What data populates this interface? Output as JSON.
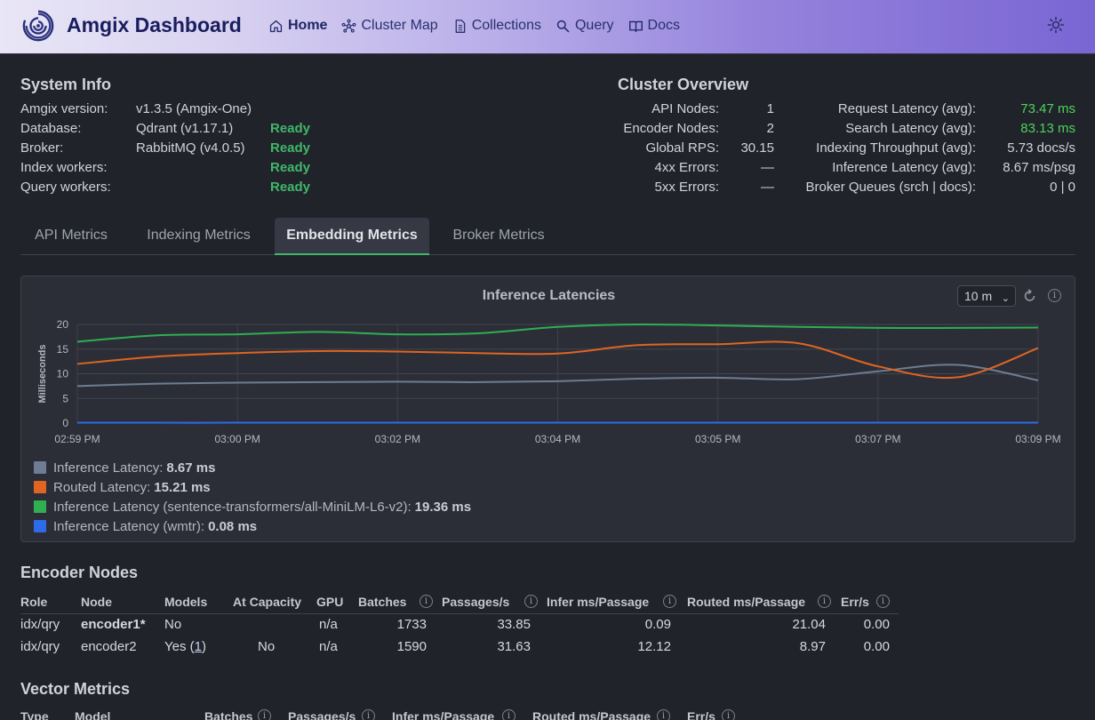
{
  "header": {
    "brand": "Amgix Dashboard",
    "nav": [
      {
        "label": "Home",
        "icon": "home-icon",
        "active": true
      },
      {
        "label": "Cluster Map",
        "icon": "network-icon"
      },
      {
        "label": "Collections",
        "icon": "document-icon"
      },
      {
        "label": "Query",
        "icon": "search-icon"
      },
      {
        "label": "Docs",
        "icon": "book-icon"
      }
    ]
  },
  "system_info": {
    "title": "System Info",
    "rows": [
      {
        "label": "Amgix version:",
        "value": "v1.3.5 (Amgix-One)",
        "status": ""
      },
      {
        "label": "Database:",
        "value": "Qdrant (v1.17.1)",
        "status": "Ready"
      },
      {
        "label": "Broker:",
        "value": "RabbitMQ (v4.0.5)",
        "status": "Ready"
      },
      {
        "label": "Index workers:",
        "value": "",
        "status": "Ready"
      },
      {
        "label": "Query workers:",
        "value": "",
        "status": "Ready"
      }
    ]
  },
  "cluster_overview": {
    "title": "Cluster Overview",
    "left": [
      {
        "label": "API Nodes:",
        "value": "1"
      },
      {
        "label": "Encoder Nodes:",
        "value": "2"
      },
      {
        "label": "Global RPS:",
        "value": "30.15"
      },
      {
        "label": "4xx Errors:",
        "value": "—"
      },
      {
        "label": "5xx Errors:",
        "value": "—"
      }
    ],
    "right": [
      {
        "label": "Request Latency (avg):",
        "value": "73.47 ms",
        "highlight": true
      },
      {
        "label": "Search Latency (avg):",
        "value": "83.13 ms",
        "highlight": true
      },
      {
        "label": "Indexing Throughput (avg):",
        "value": "5.73 docs/s",
        "highlight": false
      },
      {
        "label": "Inference Latency (avg):",
        "value": "8.67 ms/psg",
        "highlight": false
      },
      {
        "label": "Broker Queues (srch | docs):",
        "value": "0 | 0",
        "highlight": false
      }
    ]
  },
  "tabs": [
    "API Metrics",
    "Indexing Metrics",
    "Embedding Metrics",
    "Broker Metrics"
  ],
  "active_tab": "Embedding Metrics",
  "chart_controls": {
    "range": "10 m"
  },
  "chart_data": {
    "type": "line",
    "title": "Inference Latencies",
    "ylabel": "Milliseconds",
    "ylim": [
      0,
      20
    ],
    "yticks": [
      0,
      5,
      10,
      15,
      20
    ],
    "xticks": [
      "02:59 PM",
      "03:00 PM",
      "03:02 PM",
      "03:04 PM",
      "03:05 PM",
      "03:07 PM",
      "03:09 PM"
    ],
    "x": [
      0,
      0.5,
      1,
      1.5,
      2,
      2.5,
      3,
      3.5,
      4,
      4.5,
      5,
      5.5,
      6
    ],
    "grid": true,
    "legend_position": "bottom-left",
    "series": [
      {
        "name": "Inference Latency",
        "color": "#6e7d93",
        "legend_value": "8.67 ms",
        "values": [
          7.5,
          8.0,
          8.2,
          8.3,
          8.4,
          8.3,
          8.5,
          9.0,
          9.2,
          8.9,
          10.5,
          11.8,
          8.67
        ]
      },
      {
        "name": "Routed Latency",
        "color": "#e06422",
        "legend_value": "15.21 ms",
        "values": [
          12.0,
          13.5,
          14.2,
          14.6,
          14.5,
          14.2,
          14.1,
          15.8,
          16.0,
          16.2,
          11.5,
          9.3,
          15.21
        ]
      },
      {
        "name": "Inference Latency (sentence-transformers/all-MiniLM-L6-v2)",
        "color": "#2fae52",
        "legend_value": "19.36 ms",
        "values": [
          16.5,
          17.8,
          18.0,
          18.5,
          18.0,
          18.2,
          19.5,
          20.0,
          19.8,
          19.5,
          19.3,
          19.3,
          19.36
        ]
      },
      {
        "name": "Inference Latency (wmtr)",
        "color": "#2d6be8",
        "legend_value": "0.08 ms",
        "values": [
          0.1,
          0.08,
          0.08,
          0.08,
          0.08,
          0.08,
          0.08,
          0.08,
          0.08,
          0.08,
          0.08,
          0.08,
          0.08
        ]
      }
    ]
  },
  "encoder_nodes": {
    "title": "Encoder Nodes",
    "columns": [
      "Role",
      "Node",
      "Models",
      "At Capacity",
      "GPU",
      "Batches",
      "Passages/s",
      "Infer ms/Passage",
      "Routed ms/Passage",
      "Err/s"
    ],
    "rows": [
      {
        "role": "idx/qry",
        "node": "encoder1*",
        "models": "No",
        "models_link": "",
        "at_capacity": "",
        "gpu": "n/a",
        "batches": "1733",
        "passages": "33.85",
        "infer": "0.09",
        "routed": "21.04",
        "err": "0.00"
      },
      {
        "role": "idx/qry",
        "node": "encoder2",
        "models": "Yes (",
        "models_link": "1",
        "models_suffix": ")",
        "at_capacity": "No",
        "gpu": "n/a",
        "batches": "1590",
        "passages": "31.63",
        "infer": "12.12",
        "routed": "8.97",
        "err": "0.00"
      }
    ]
  },
  "vector_metrics": {
    "title": "Vector Metrics",
    "columns": [
      "Type",
      "Model",
      "Batches",
      "Passages/s",
      "Infer ms/Passage",
      "Routed ms/Passage",
      "Err/s"
    ]
  }
}
